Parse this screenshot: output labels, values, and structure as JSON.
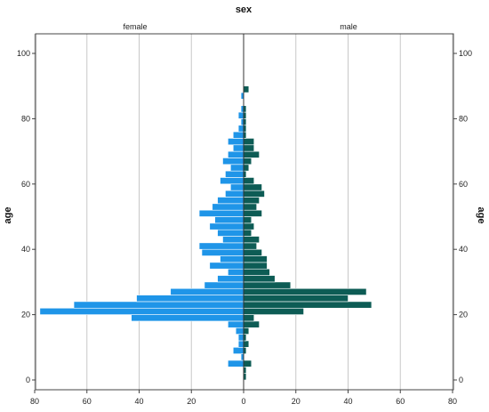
{
  "chart_data": {
    "type": "bar",
    "orientation": "horizontal-pyramid",
    "title": "sex",
    "ylabel": "age",
    "ylim": [
      -3,
      106
    ],
    "xlim": [
      -80,
      80
    ],
    "panels": [
      "female",
      "male"
    ],
    "y_ticks": [
      0,
      20,
      40,
      60,
      80,
      100
    ],
    "x_ticks": [
      80,
      60,
      40,
      20,
      0,
      20,
      40,
      60,
      80
    ],
    "bin_width": 2,
    "grid": "vertical",
    "colors": {
      "female": "#1f95e8",
      "male": "#0d5c55",
      "grid": "#c8c8c8",
      "frame": "#444444"
    },
    "bins": [
      0,
      2,
      4,
      6,
      8,
      10,
      12,
      14,
      16,
      18,
      20,
      22,
      24,
      26,
      28,
      30,
      32,
      34,
      36,
      38,
      40,
      42,
      44,
      46,
      48,
      50,
      52,
      54,
      56,
      58,
      60,
      62,
      64,
      66,
      68,
      70,
      72,
      74,
      76,
      78,
      80,
      82,
      84,
      86,
      88
    ],
    "series": [
      {
        "name": "female",
        "values": [
          0,
          0,
          6,
          1,
          4,
          2,
          2,
          3,
          6,
          43,
          78,
          65,
          41,
          28,
          15,
          10,
          6,
          13,
          9,
          16,
          17,
          8,
          10,
          13,
          11,
          17,
          12,
          10,
          7,
          5,
          9,
          7,
          5,
          8,
          6,
          4,
          6,
          4,
          2,
          1,
          2,
          1,
          0,
          1,
          0
        ]
      },
      {
        "name": "male",
        "values": [
          1,
          1,
          3,
          0,
          1,
          2,
          1,
          2,
          6,
          4,
          23,
          49,
          40,
          47,
          18,
          12,
          10,
          9,
          9,
          7,
          5,
          6,
          3,
          4,
          3,
          7,
          5,
          6,
          8,
          7,
          4,
          1,
          2,
          3,
          6,
          4,
          4,
          1,
          1,
          1,
          1,
          1,
          0,
          0,
          2
        ]
      }
    ]
  }
}
